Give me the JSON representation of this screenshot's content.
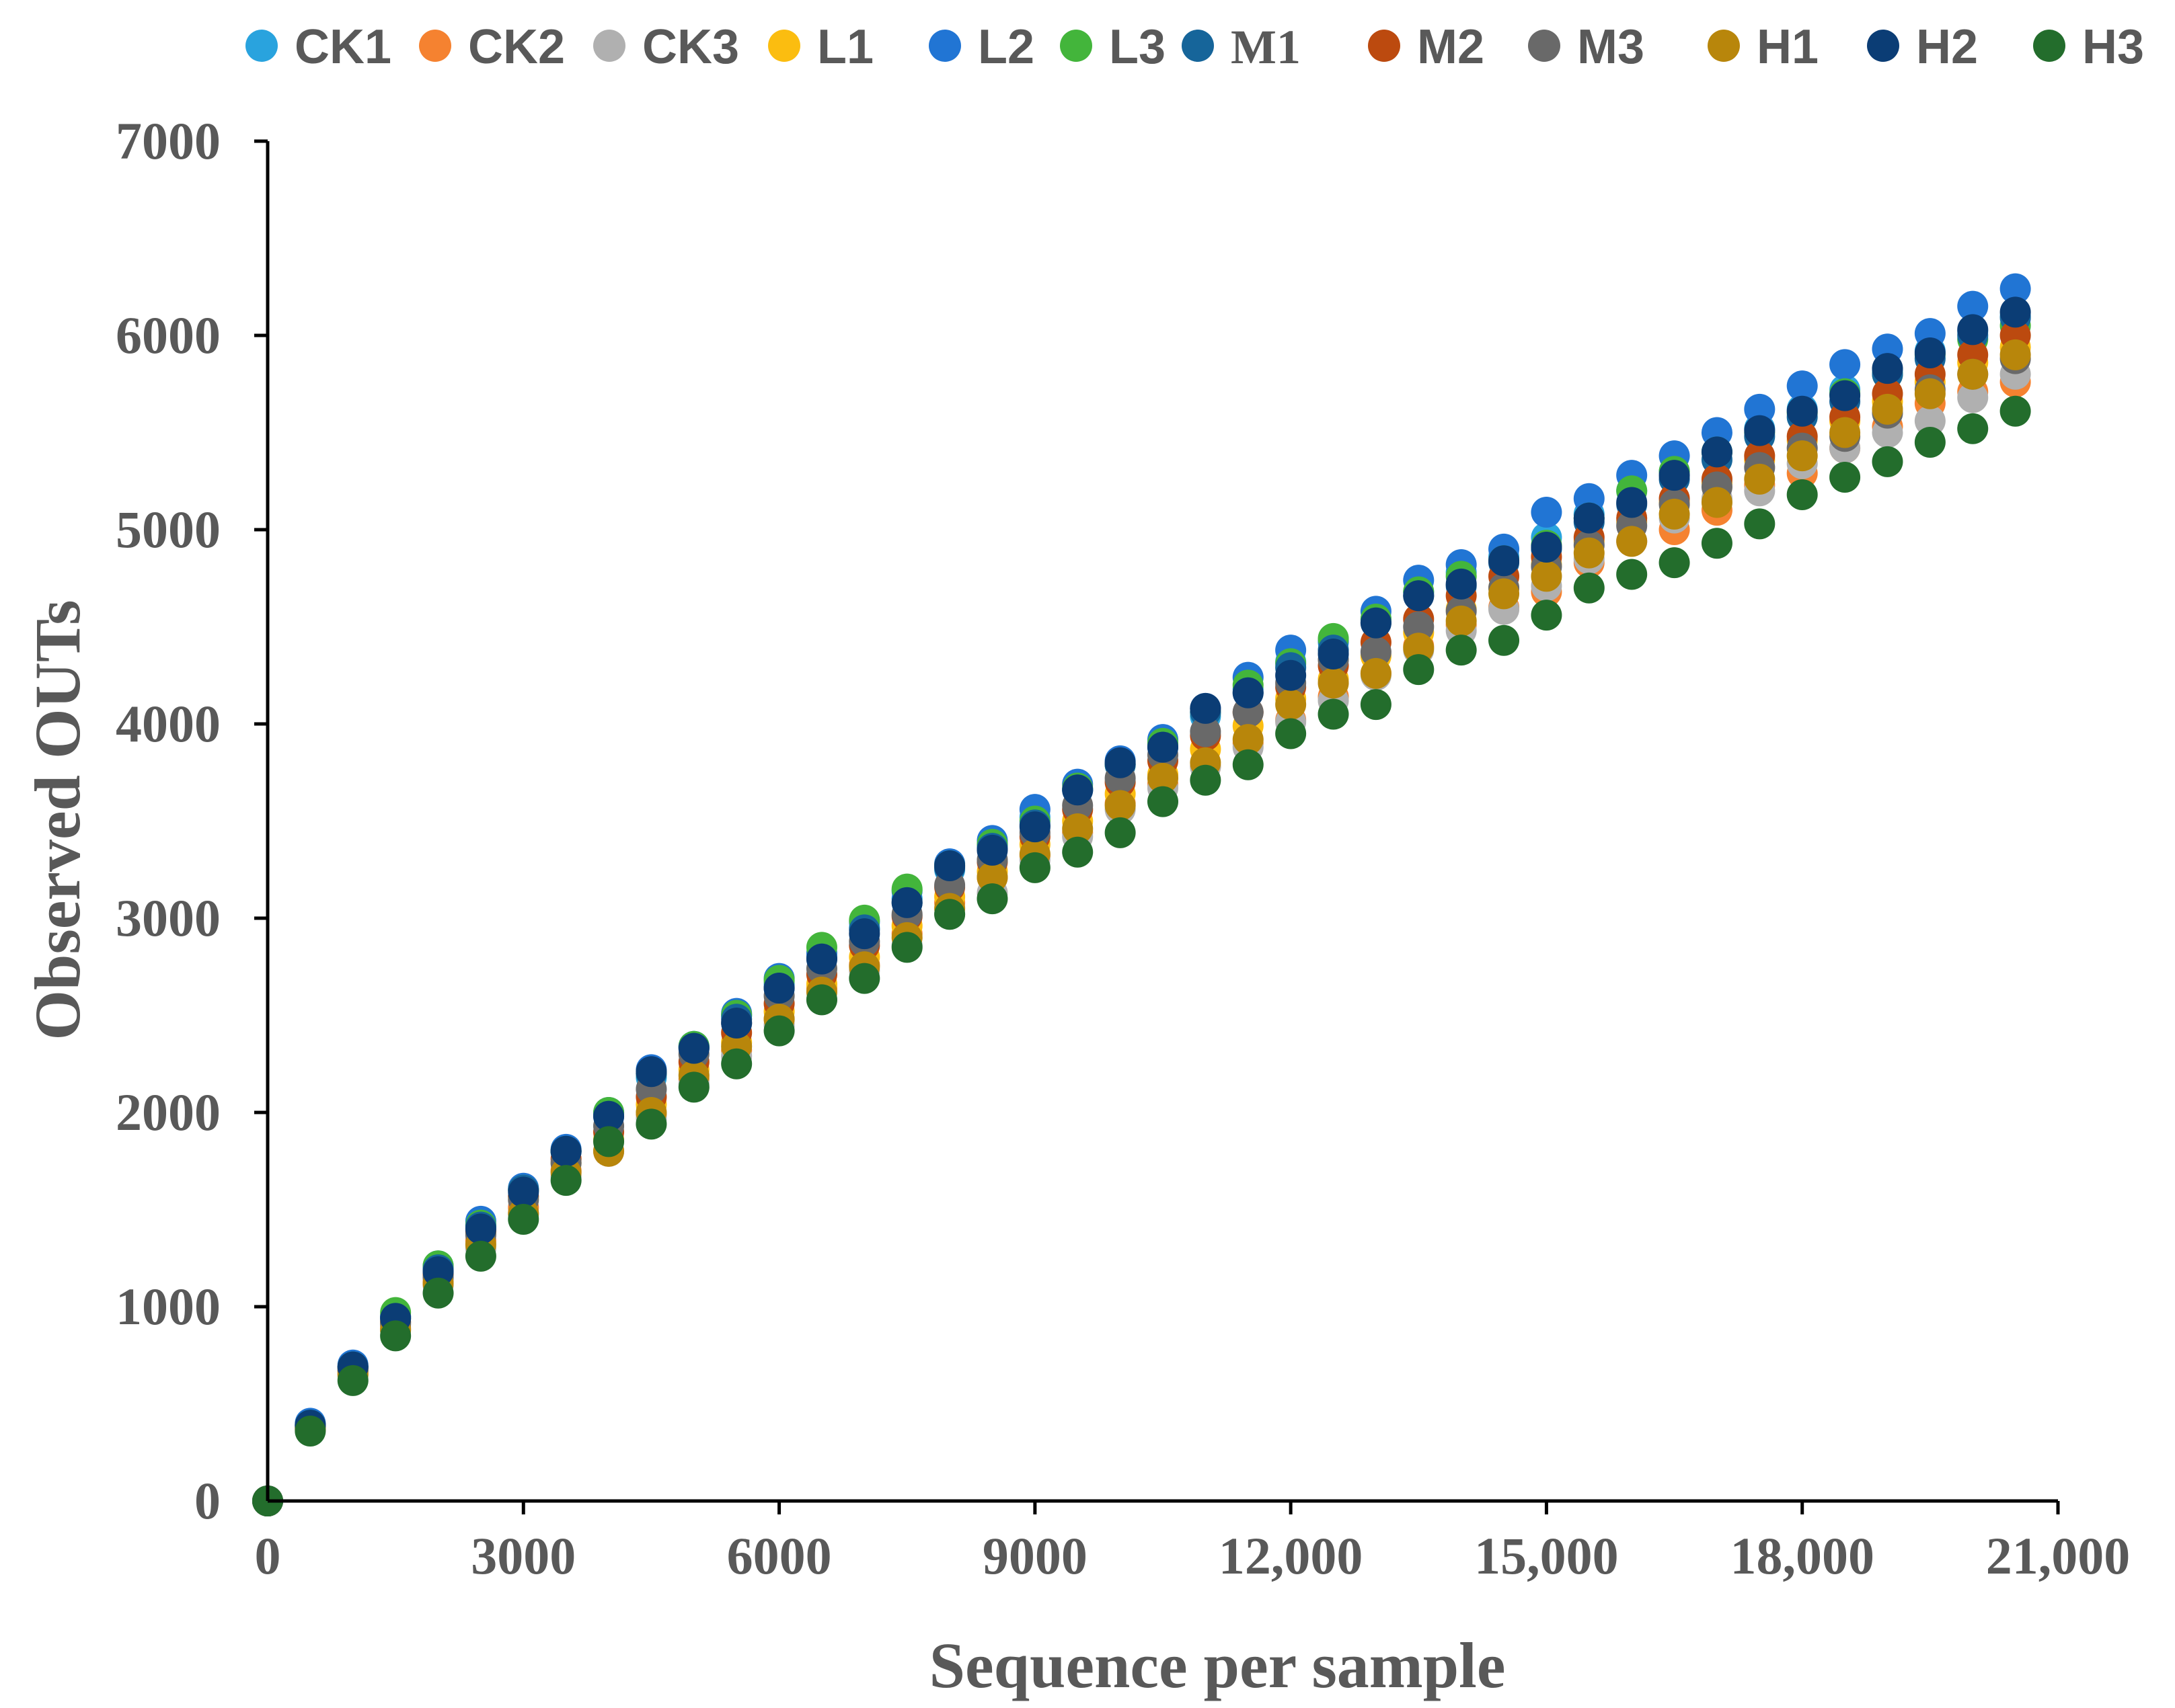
{
  "chart_data": {
    "type": "scatter",
    "title": "",
    "xlabel": "Sequence per sample",
    "ylabel": "Observed OUTs",
    "xlim": [
      0,
      21000
    ],
    "ylim": [
      0,
      7000
    ],
    "grid": false,
    "legend_position": "top",
    "x_ticks": [
      {
        "value": 0,
        "label": "0"
      },
      {
        "value": 3000,
        "label": "3000"
      },
      {
        "value": 6000,
        "label": "6000"
      },
      {
        "value": 9000,
        "label": "9000"
      },
      {
        "value": 12000,
        "label": "12,000"
      },
      {
        "value": 15000,
        "label": "15,000"
      },
      {
        "value": 18000,
        "label": "18,000"
      },
      {
        "value": 21000,
        "label": "21,000"
      }
    ],
    "y_ticks": [
      {
        "value": 0,
        "label": "0"
      },
      {
        "value": 1000,
        "label": "1000"
      },
      {
        "value": 2000,
        "label": "2000"
      },
      {
        "value": 3000,
        "label": "3000"
      },
      {
        "value": 4000,
        "label": "4000"
      },
      {
        "value": 5000,
        "label": "5000"
      },
      {
        "value": 6000,
        "label": "6000"
      },
      {
        "value": 7000,
        "label": "7000"
      }
    ],
    "x": [
      0,
      500,
      1000,
      1500,
      2000,
      2500,
      3000,
      3500,
      4000,
      4500,
      5000,
      5500,
      6000,
      6500,
      7000,
      7500,
      8000,
      8500,
      9000,
      9500,
      10000,
      10500,
      11000,
      11500,
      12000,
      12500,
      13000,
      13500,
      14000,
      14500,
      15000,
      15500,
      16000,
      16500,
      17000,
      17500,
      18000,
      18500,
      19000,
      19500,
      20000,
      20500
    ],
    "series": [
      {
        "name": "CK1",
        "color": "#29a3de",
        "values": [
          0,
          390,
          690,
          950,
          1200,
          1420,
          1600,
          1800,
          1990,
          2180,
          2340,
          2500,
          2660,
          2800,
          2950,
          3100,
          3250,
          3380,
          3520,
          3660,
          3790,
          3900,
          4040,
          4180,
          4320,
          4420,
          4540,
          4680,
          4780,
          4860,
          4960,
          5080,
          5200,
          5300,
          5400,
          5520,
          5620,
          5720,
          5820,
          5920,
          6020,
          6100
        ]
      },
      {
        "name": "CK2",
        "color": "#f58230",
        "values": [
          0,
          370,
          660,
          890,
          1130,
          1340,
          1510,
          1700,
          1800,
          1990,
          2170,
          2320,
          2480,
          2640,
          2760,
          2920,
          3080,
          3210,
          3320,
          3440,
          3590,
          3690,
          3780,
          3900,
          4020,
          4140,
          4260,
          4400,
          4510,
          4600,
          4680,
          4830,
          4940,
          5000,
          5100,
          5230,
          5290,
          5420,
          5530,
          5650,
          5710,
          5760
        ]
      },
      {
        "name": "CK3",
        "color": "#b0b0b0",
        "values": [
          0,
          370,
          650,
          880,
          1110,
          1300,
          1480,
          1670,
          1800,
          1970,
          2150,
          2290,
          2450,
          2580,
          2730,
          2860,
          3020,
          3130,
          3300,
          3420,
          3560,
          3670,
          3780,
          3880,
          4010,
          4120,
          4250,
          4380,
          4480,
          4590,
          4710,
          4850,
          4940,
          5060,
          5160,
          5200,
          5340,
          5420,
          5500,
          5560,
          5680,
          5800
        ]
      },
      {
        "name": "L1",
        "color": "#fbbd10",
        "values": [
          0,
          380,
          670,
          920,
          1160,
          1380,
          1560,
          1740,
          1860,
          2040,
          2220,
          2360,
          2520,
          2660,
          2800,
          2960,
          3110,
          3240,
          3380,
          3500,
          3640,
          3740,
          3870,
          3990,
          4130,
          4230,
          4350,
          4470,
          4590,
          4700,
          4820,
          4940,
          5040,
          5140,
          5240,
          5360,
          5460,
          5560,
          5660,
          5760,
          5860,
          5940
        ]
      },
      {
        "name": "L2",
        "color": "#2175d4",
        "values": [
          0,
          400,
          700,
          950,
          1210,
          1440,
          1610,
          1810,
          2000,
          2220,
          2340,
          2510,
          2690,
          2820,
          2980,
          3140,
          3280,
          3400,
          3560,
          3690,
          3810,
          3920,
          4080,
          4240,
          4380,
          4430,
          4580,
          4740,
          4820,
          4900,
          5090,
          5160,
          5280,
          5380,
          5500,
          5620,
          5740,
          5850,
          5930,
          6010,
          6150,
          6240
        ]
      },
      {
        "name": "L3",
        "color": "#43b53b",
        "values": [
          0,
          390,
          690,
          970,
          1210,
          1420,
          1600,
          1800,
          2000,
          2200,
          2340,
          2500,
          2680,
          2850,
          2990,
          3150,
          3270,
          3380,
          3500,
          3670,
          3790,
          3900,
          4060,
          4200,
          4310,
          4440,
          4540,
          4680,
          4760,
          4840,
          4920,
          5060,
          5200,
          5300,
          5400,
          5500,
          5600,
          5700,
          5800,
          5900,
          5980,
          6050
        ]
      },
      {
        "name": "M1",
        "color": "#16659a",
        "values": [
          0,
          390,
          690,
          940,
          1190,
          1410,
          1600,
          1800,
          1980,
          2200,
          2330,
          2480,
          2640,
          2790,
          2940,
          3080,
          3260,
          3360,
          3480,
          3660,
          3790,
          3880,
          4060,
          4160,
          4290,
          4380,
          4520,
          4660,
          4710,
          4830,
          4900,
          5040,
          5130,
          5260,
          5360,
          5480,
          5580,
          5660,
          5800,
          5880,
          6000,
          6090
        ]
      },
      {
        "name": "M2",
        "color": "#bc4a0f",
        "values": [
          0,
          380,
          680,
          920,
          1170,
          1390,
          1570,
          1760,
          1900,
          2080,
          2260,
          2410,
          2560,
          2710,
          2860,
          3010,
          3160,
          3290,
          3420,
          3560,
          3700,
          3810,
          3940,
          4060,
          4190,
          4300,
          4420,
          4540,
          4660,
          4760,
          4860,
          4960,
          5060,
          5160,
          5260,
          5380,
          5480,
          5580,
          5700,
          5800,
          5900,
          6000
        ]
      },
      {
        "name": "M3",
        "color": "#696969",
        "values": [
          0,
          380,
          670,
          910,
          1150,
          1370,
          1550,
          1740,
          1930,
          2120,
          2300,
          2460,
          2600,
          2740,
          2880,
          3020,
          3170,
          3300,
          3440,
          3580,
          3720,
          3840,
          3960,
          4060,
          4210,
          4330,
          4370,
          4500,
          4580,
          4700,
          4810,
          4920,
          5020,
          5130,
          5220,
          5320,
          5420,
          5480,
          5600,
          5720,
          5800,
          5880
        ]
      },
      {
        "name": "H1",
        "color": "#b8860b",
        "values": [
          0,
          370,
          650,
          880,
          1120,
          1320,
          1480,
          1690,
          1800,
          2000,
          2190,
          2340,
          2480,
          2620,
          2750,
          2900,
          3050,
          3210,
          3330,
          3460,
          3580,
          3720,
          3800,
          3920,
          4100,
          4210,
          4260,
          4390,
          4530,
          4670,
          4760,
          4880,
          4940,
          5080,
          5140,
          5260,
          5380,
          5500,
          5620,
          5700,
          5800,
          5900
        ]
      },
      {
        "name": "H2",
        "color": "#0b3d75",
        "values": [
          0,
          390,
          690,
          940,
          1180,
          1400,
          1590,
          1800,
          1980,
          2210,
          2330,
          2460,
          2640,
          2790,
          2920,
          3080,
          3270,
          3350,
          3470,
          3660,
          3800,
          3880,
          4080,
          4160,
          4250,
          4360,
          4520,
          4660,
          4720,
          4840,
          4910,
          5060,
          5140,
          5280,
          5400,
          5510,
          5610,
          5690,
          5830,
          5910,
          6030,
          6120
        ]
      },
      {
        "name": "H3",
        "color": "#236d2c",
        "values": [
          0,
          360,
          620,
          850,
          1070,
          1260,
          1450,
          1650,
          1850,
          1940,
          2130,
          2250,
          2420,
          2580,
          2690,
          2850,
          3020,
          3100,
          3260,
          3340,
          3440,
          3600,
          3710,
          3790,
          3950,
          4050,
          4100,
          4280,
          4380,
          4430,
          4560,
          4700,
          4770,
          4830,
          4930,
          5030,
          5180,
          5270,
          5350,
          5450,
          5520,
          5610
        ]
      }
    ]
  }
}
